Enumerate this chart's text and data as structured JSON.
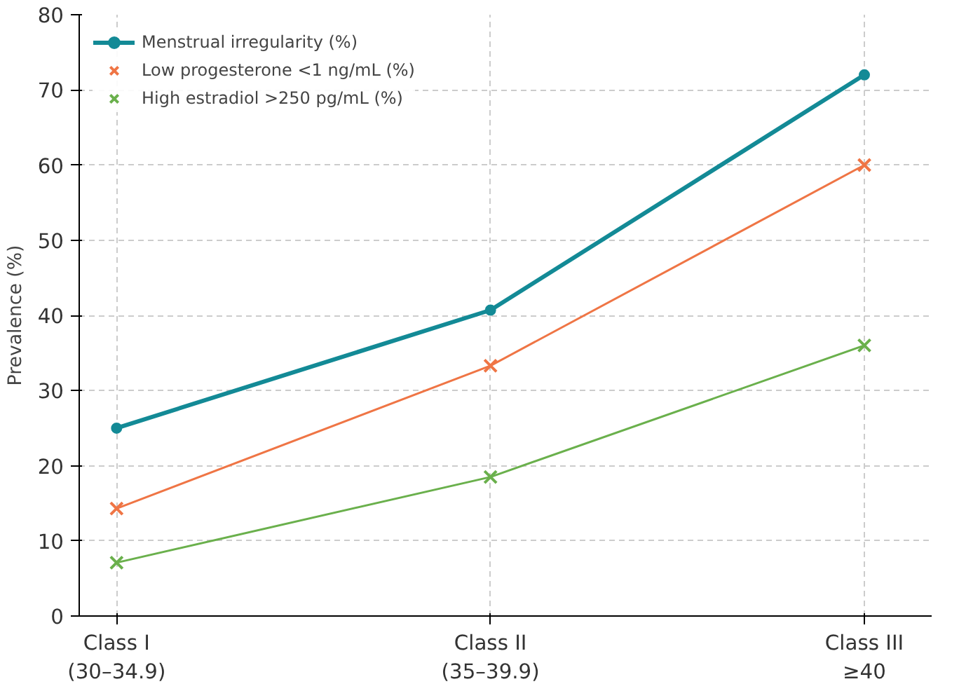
{
  "chart_data": {
    "type": "line",
    "ylabel": "Prevalence (%)",
    "categories": [
      "Class I\n(30–34.9)",
      "Class II\n(35–39.9)",
      "Class III\n≥40"
    ],
    "series": [
      {
        "name": "Menstrual irregularity (%)",
        "color": "#138a96",
        "values": [
          25,
          40.7,
          72
        ],
        "marker": "circle"
      },
      {
        "name": "Low progesterone <1 ng/mL (%)",
        "color": "#ef7545",
        "values": [
          14.3,
          33.3,
          60
        ],
        "marker": "cross"
      },
      {
        "name": "High estradiol >250 pg/mL (%)",
        "color": "#6ab04c",
        "values": [
          7.1,
          18.5,
          36
        ],
        "marker": "cross"
      }
    ],
    "ylim": [
      0,
      80
    ],
    "yticks": [
      0,
      10,
      20,
      30,
      40,
      50,
      60,
      70,
      80
    ],
    "grid": true,
    "legend": "top left",
    "line_style": "solid"
  }
}
